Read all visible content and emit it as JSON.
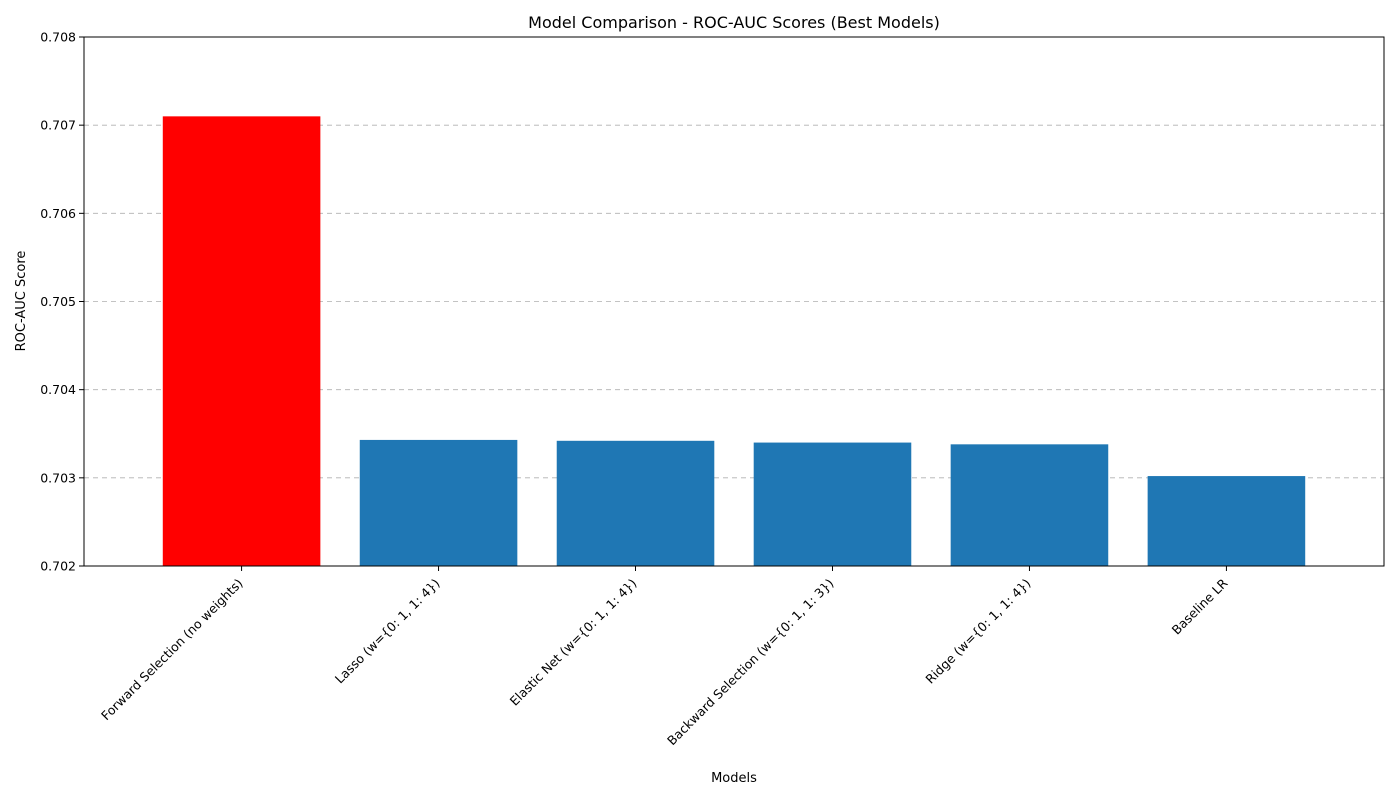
{
  "chart_data": {
    "type": "bar",
    "title": "Model Comparison - ROC-AUC Scores (Best Models)",
    "xlabel": "Models",
    "ylabel": "ROC-AUC Score",
    "categories": [
      "Forward Selection (no weights)",
      "Lasso (w={0: 1, 1: 4})",
      "Elastic Net (w={0: 1, 1: 4})",
      "Backward Selection (w={0: 1, 1: 3})",
      "Ridge (w={0: 1, 1: 4})",
      "Baseline LR"
    ],
    "values": [
      0.7071,
      0.70343,
      0.70342,
      0.7034,
      0.70338,
      0.70302
    ],
    "colors": [
      "#ff0000",
      "#1f77b4",
      "#1f77b4",
      "#1f77b4",
      "#1f77b4",
      "#1f77b4"
    ],
    "ylim": [
      0.702,
      0.708
    ],
    "yticks": [
      "0.702",
      "0.703",
      "0.704",
      "0.705",
      "0.706",
      "0.707",
      "0.708"
    ],
    "grid": "y-dashed",
    "legend": "none"
  }
}
